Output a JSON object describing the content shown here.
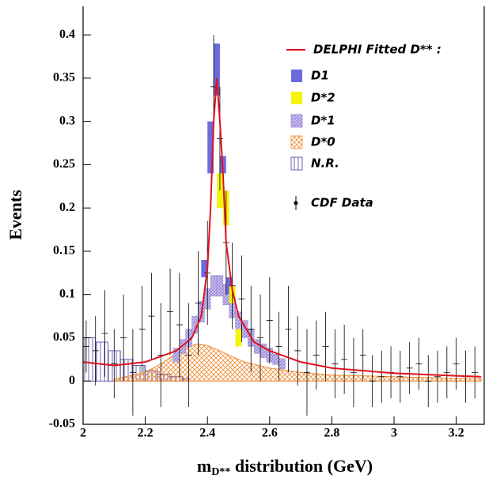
{
  "chart_data": {
    "type": "physics-fit",
    "y_label": "Events",
    "x_label": {
      "main": "m",
      "sub": "D**",
      "rest": " distribution (GeV)"
    },
    "xlim": [
      2,
      3.29
    ],
    "ylim": [
      -0.05,
      0.433
    ],
    "xticks": [
      2,
      2.2,
      2.4,
      2.6,
      2.8,
      3,
      3.2
    ],
    "yticks": [
      -0.05,
      0,
      0.05,
      0.1,
      0.15,
      0.2,
      0.25,
      0.3,
      0.35,
      0.4
    ],
    "series": [
      {
        "name": "DELPHI Fitted D** :",
        "style": "line",
        "color": "#e0101a",
        "x": [
          2.0,
          2.1,
          2.2,
          2.3,
          2.35,
          2.38,
          2.4,
          2.41,
          2.42,
          2.43,
          2.44,
          2.45,
          2.46,
          2.48,
          2.5,
          2.55,
          2.6,
          2.7,
          2.8,
          3.0,
          3.2,
          3.28
        ],
        "values": [
          0.022,
          0.018,
          0.022,
          0.035,
          0.05,
          0.075,
          0.13,
          0.2,
          0.3,
          0.35,
          0.3,
          0.24,
          0.16,
          0.105,
          0.075,
          0.045,
          0.035,
          0.022,
          0.015,
          0.009,
          0.006,
          0.005
        ]
      },
      {
        "name": "D1",
        "style": "box",
        "color": "#6b6bde",
        "x": [
          2.39,
          2.41,
          2.43,
          2.45,
          2.47
        ],
        "values": [
          0.13,
          0.27,
          0.36,
          0.25,
          0.11
        ],
        "errors": [
          0.01,
          0.03,
          0.03,
          0.01,
          0.01
        ]
      },
      {
        "name": "D*2",
        "style": "box",
        "color": "#f5f50a",
        "x": [
          2.44,
          2.46,
          2.48,
          2.5
        ],
        "values": [
          0.22,
          0.2,
          0.1,
          0.05
        ],
        "errors": [
          0.02,
          0.02,
          0.01,
          0.01
        ]
      },
      {
        "name": "D*1",
        "style": "box-hatch",
        "color": "#9a86d6",
        "x": [
          2.3,
          2.32,
          2.34,
          2.36,
          2.38,
          2.4,
          2.42,
          2.44,
          2.46,
          2.48,
          2.5,
          2.52,
          2.54,
          2.56,
          2.58,
          2.6,
          2.62,
          2.64
        ],
        "values": [
          0.03,
          0.04,
          0.05,
          0.065,
          0.08,
          0.095,
          0.11,
          0.11,
          0.1,
          0.085,
          0.07,
          0.06,
          0.05,
          0.04,
          0.035,
          0.03,
          0.025,
          0.02
        ],
        "errors": [
          0.008,
          0.008,
          0.01,
          0.01,
          0.012,
          0.012,
          0.012,
          0.012,
          0.012,
          0.012,
          0.01,
          0.01,
          0.01,
          0.008,
          0.008,
          0.008,
          0.006,
          0.006
        ]
      },
      {
        "name": "D*0",
        "style": "area-hatch",
        "color": "#f08a30",
        "x": [
          2.1,
          2.2,
          2.26,
          2.3,
          2.34,
          2.37,
          2.4,
          2.44,
          2.48,
          2.52,
          2.6,
          2.7,
          2.8,
          3.0,
          3.2,
          3.28
        ],
        "values": [
          0.002,
          0.01,
          0.022,
          0.032,
          0.04,
          0.043,
          0.041,
          0.035,
          0.028,
          0.022,
          0.015,
          0.01,
          0.007,
          0.005,
          0.003,
          0.003
        ]
      },
      {
        "name": "N.R.",
        "style": "step-hatch",
        "color": "#4a3fa0",
        "x": [
          2.0,
          2.04,
          2.08,
          2.12,
          2.16,
          2.2,
          2.24,
          2.28,
          2.32
        ],
        "values": [
          0.05,
          0.045,
          0.035,
          0.025,
          0.018,
          0.012,
          0.008,
          0.005,
          0.003
        ]
      },
      {
        "name": "CDF Data",
        "style": "points",
        "color": "#000000",
        "x": [
          2.01,
          2.04,
          2.07,
          2.1,
          2.13,
          2.16,
          2.19,
          2.22,
          2.25,
          2.28,
          2.31,
          2.34,
          2.37,
          2.4,
          2.42,
          2.44,
          2.46,
          2.48,
          2.51,
          2.54,
          2.57,
          2.6,
          2.63,
          2.66,
          2.69,
          2.72,
          2.75,
          2.78,
          2.81,
          2.84,
          2.87,
          2.9,
          2.93,
          2.96,
          2.99,
          3.02,
          3.05,
          3.08,
          3.11,
          3.14,
          3.17,
          3.2,
          3.23,
          3.26
        ],
        "values": [
          0.04,
          0.035,
          0.055,
          0.02,
          0.05,
          0.01,
          0.06,
          0.075,
          0.03,
          0.08,
          0.065,
          0.03,
          0.09,
          0.125,
          0.34,
          0.28,
          0.16,
          0.11,
          0.095,
          0.06,
          0.05,
          0.07,
          0.04,
          0.06,
          0.035,
          0.01,
          0.03,
          0.04,
          0.02,
          0.025,
          0.01,
          0.03,
          0.0,
          0.005,
          0.01,
          0.005,
          0.015,
          0.02,
          0.0,
          0.005,
          0.01,
          0.02,
          0.005,
          0.01
        ],
        "errors": [
          0.03,
          0.04,
          0.05,
          0.04,
          0.05,
          0.05,
          0.05,
          0.05,
          0.06,
          0.05,
          0.06,
          0.06,
          0.06,
          0.06,
          0.06,
          0.06,
          0.06,
          0.05,
          0.05,
          0.05,
          0.05,
          0.05,
          0.04,
          0.05,
          0.04,
          0.05,
          0.04,
          0.04,
          0.04,
          0.04,
          0.04,
          0.03,
          0.03,
          0.03,
          0.03,
          0.03,
          0.03,
          0.03,
          0.03,
          0.03,
          0.03,
          0.03,
          0.03,
          0.03
        ]
      }
    ]
  }
}
